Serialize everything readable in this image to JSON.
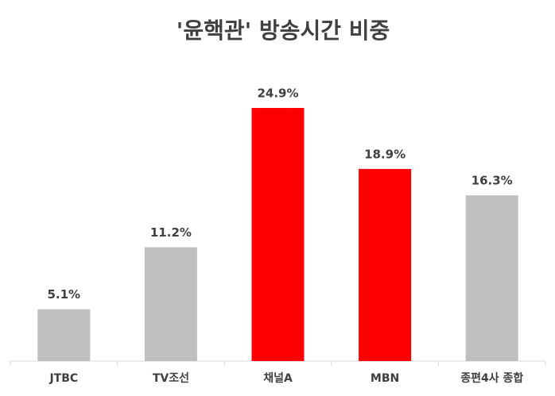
{
  "chart_data": {
    "type": "bar",
    "title": "'윤핵관' 방송시간 비중",
    "categories": [
      "JTBC",
      "TV조선",
      "채널A",
      "MBN",
      "종편4사 종합"
    ],
    "values": [
      5.1,
      11.2,
      24.9,
      18.9,
      16.3
    ],
    "value_labels": [
      "5.1%",
      "11.2%",
      "24.9%",
      "18.9%",
      "16.3%"
    ],
    "colors": [
      "#bfbfbf",
      "#bfbfbf",
      "#ff0000",
      "#ff0000",
      "#bfbfbf"
    ]
  }
}
